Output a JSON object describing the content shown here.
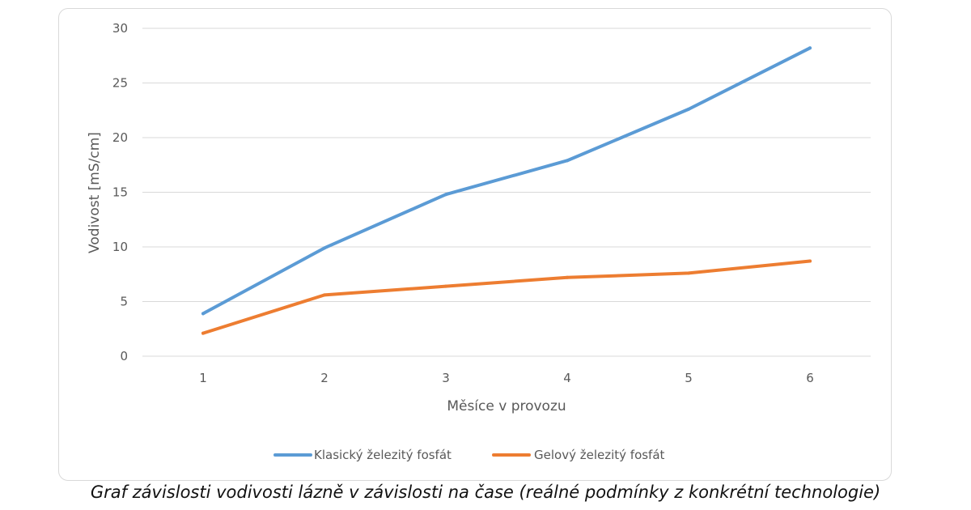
{
  "caption": "Graf závislosti vodivosti lázně v závislosti na čase (reálné podmínky z konkrétní technologie)",
  "chart_data": {
    "type": "line",
    "xlabel": "Měsíce v provozu",
    "ylabel": "Vodivost [mS/cm]",
    "categories": [
      "1",
      "2",
      "3",
      "4",
      "5",
      "6"
    ],
    "yticks": [
      "0",
      "5",
      "10",
      "15",
      "20",
      "25",
      "30"
    ],
    "ylim": [
      0,
      30
    ],
    "grid": true,
    "legend_position": "bottom",
    "series": [
      {
        "name": "Klasický železitý fosfát",
        "color": "#5b9bd5",
        "values": [
          3.9,
          9.9,
          14.8,
          17.9,
          22.6,
          28.2
        ]
      },
      {
        "name": "Gelový železitý fosfát",
        "color": "#ed7d31",
        "values": [
          2.1,
          5.6,
          6.4,
          7.2,
          7.6,
          8.7
        ]
      }
    ]
  }
}
